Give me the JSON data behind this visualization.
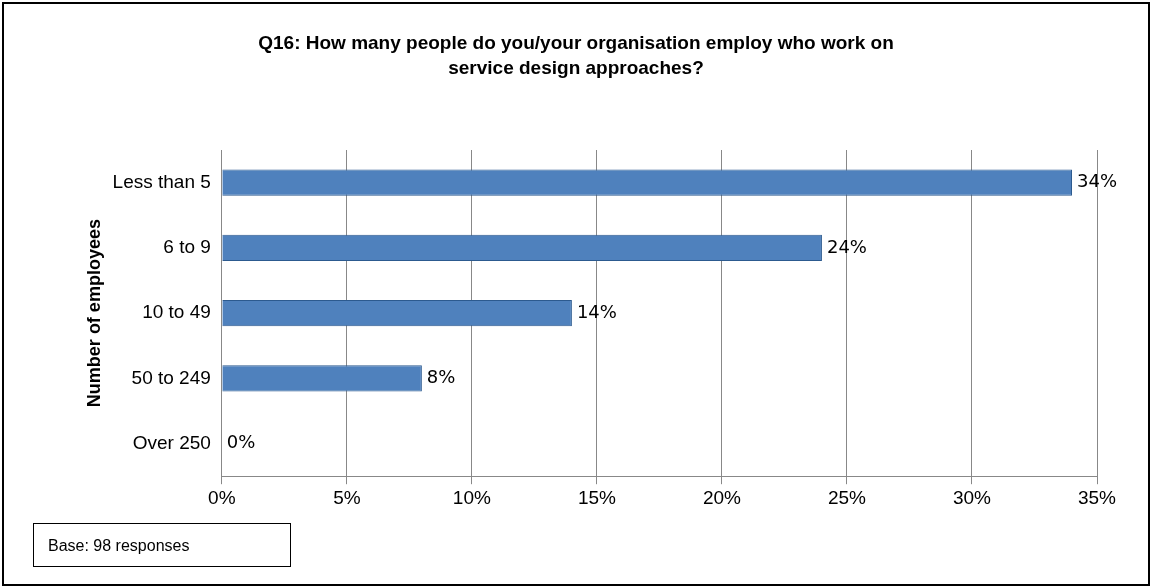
{
  "chart_data": {
    "type": "bar",
    "orientation": "horizontal",
    "title": "Q16: How many people do you/your organisation employ who work on service design approaches?",
    "ylabel": "Number of employees",
    "categories": [
      "Less than 5",
      "6 to 9",
      "10 to 49",
      "50 to 249",
      "Over 250"
    ],
    "values": [
      34,
      24,
      14,
      8,
      0
    ],
    "value_labels": [
      "34%",
      "24%",
      "14%",
      "8%",
      "0%"
    ],
    "color": "#4f81bd",
    "xlim": [
      0,
      35
    ],
    "xticks": [
      {
        "value": 0,
        "label": "0%"
      },
      {
        "value": 5,
        "label": "5%"
      },
      {
        "value": 10,
        "label": "10%"
      },
      {
        "value": 15,
        "label": "15%"
      },
      {
        "value": 20,
        "label": "20%"
      },
      {
        "value": 25,
        "label": "25%"
      },
      {
        "value": 30,
        "label": "30%"
      },
      {
        "value": 35,
        "label": "35%"
      }
    ],
    "grid": "x",
    "legend": false,
    "annotations": [
      "Base: 98 responses"
    ]
  }
}
